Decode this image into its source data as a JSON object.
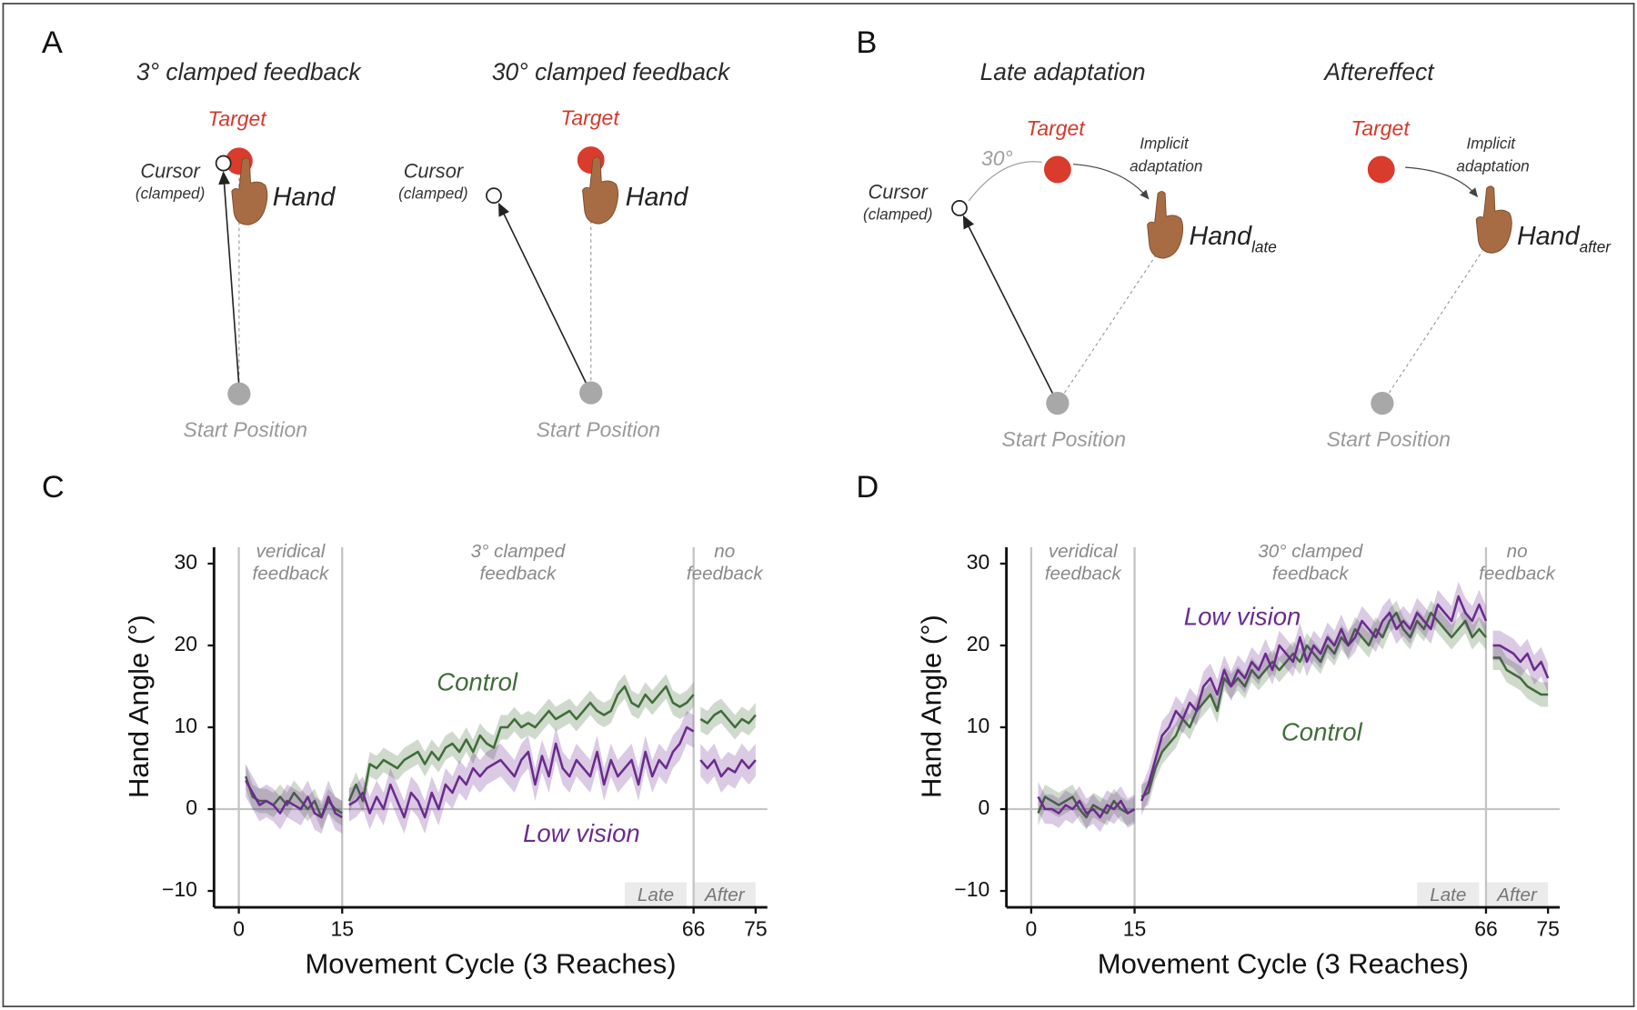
{
  "panel_a": {
    "letter": "A",
    "subpanels": [
      {
        "title": "3° clamped feedback",
        "target": "Target",
        "cursor": "Cursor",
        "cursor_note": "(clamped)",
        "hand": "Hand",
        "start": "Start Position"
      },
      {
        "title": "30° clamped feedback",
        "target": "Target",
        "cursor": "Cursor",
        "cursor_note": "(clamped)",
        "hand": "Hand",
        "start": "Start Position"
      }
    ]
  },
  "panel_b": {
    "letter": "B",
    "angle": "30°",
    "subpanels": [
      {
        "title": "Late adaptation",
        "target": "Target",
        "cursor": "Cursor",
        "cursor_note": "(clamped)",
        "implicit": [
          "Implicit",
          "adaptation"
        ],
        "hand": "Hand",
        "hand_sub": "late",
        "start": "Start Position"
      },
      {
        "title": "Aftereffect",
        "target": "Target",
        "implicit": [
          "Implicit",
          "adaptation"
        ],
        "hand": "Hand",
        "hand_sub": "after",
        "start": "Start Position"
      }
    ]
  },
  "chart_data": [
    {
      "type": "line",
      "panel_label": "C",
      "x_label": "Movement Cycle (3 Reaches)",
      "y_label": "Hand Angle (°)",
      "xlim": [
        -3.6,
        76.7
      ],
      "ylim": [
        -12,
        32
      ],
      "xticks": [
        0,
        15,
        66,
        75
      ],
      "yticks": [
        {
          "value": -10,
          "label": "−10"
        },
        0,
        10,
        20,
        30
      ],
      "zero_line": true,
      "phases": [
        {
          "lines": [
            "veridical",
            "feedback"
          ],
          "range": [
            0,
            15
          ]
        },
        {
          "lines": [
            "3° clamped",
            "feedback"
          ],
          "range": [
            15,
            66
          ]
        },
        {
          "lines": [
            "no",
            "feedback"
          ],
          "range": [
            66,
            75
          ]
        }
      ],
      "windows": [
        {
          "label": "Late",
          "range": [
            56,
            65
          ]
        },
        {
          "label": "After",
          "range": [
            66,
            75
          ]
        }
      ],
      "x": [
        1,
        2,
        3,
        4,
        5,
        6,
        7,
        8,
        9,
        10,
        11,
        12,
        13,
        14,
        15,
        16,
        17,
        18,
        19,
        20,
        21,
        22,
        23,
        24,
        25,
        26,
        27,
        28,
        29,
        30,
        31,
        32,
        33,
        34,
        35,
        36,
        37,
        38,
        39,
        40,
        41,
        42,
        43,
        44,
        45,
        46,
        47,
        48,
        49,
        50,
        51,
        52,
        53,
        54,
        55,
        56,
        57,
        58,
        59,
        60,
        61,
        62,
        63,
        64,
        65,
        66,
        67,
        68,
        69,
        70,
        71,
        72,
        73,
        74,
        75
      ],
      "series": [
        {
          "name": "Control",
          "color": "#3f6d38",
          "error": 1.5,
          "values": [
            4,
            1.5,
            1,
            1,
            0.5,
            1.5,
            0.5,
            2,
            1,
            0,
            1,
            -1,
            1,
            0,
            -0.5,
            1,
            3,
            1,
            5.5,
            5,
            6,
            5.5,
            5,
            6,
            6.5,
            7,
            5.5,
            7,
            6,
            7.5,
            8,
            7,
            8.5,
            7,
            9,
            8,
            7.5,
            10,
            10,
            11,
            10,
            10.5,
            10,
            11,
            12,
            11,
            11.5,
            12,
            11,
            12,
            13,
            12,
            11.5,
            12,
            14,
            15,
            13,
            12.5,
            14,
            13,
            14,
            15,
            13,
            12.5,
            13,
            14,
            11,
            10.5,
            11.5,
            12,
            11,
            10,
            11,
            10.5,
            11.5
          ]
        },
        {
          "name": "Low vision",
          "color": "#6b2b8e",
          "error": 2,
          "values": [
            3.5,
            2,
            0.5,
            1,
            0.5,
            -0.5,
            1,
            0.5,
            0,
            1.5,
            -0.5,
            -1,
            1.5,
            -0.5,
            -1,
            0.5,
            1,
            2,
            -0.5,
            1.5,
            0,
            3,
            1,
            -1,
            2,
            1,
            -1,
            2,
            0,
            3,
            2,
            4,
            3,
            5,
            4,
            5,
            5.5,
            6,
            5,
            4,
            6,
            7,
            3,
            6.5,
            4,
            8,
            5,
            4,
            6,
            5,
            4,
            7,
            3,
            6,
            4,
            5,
            6,
            3,
            7,
            4,
            6,
            5,
            7,
            8,
            10,
            9.5,
            6,
            5,
            6,
            4,
            5,
            4.5,
            6,
            5,
            6
          ]
        }
      ]
    },
    {
      "type": "line",
      "panel_label": "D",
      "x_label": "Movement Cycle (3 Reaches)",
      "y_label": "Hand Angle (°)",
      "xlim": [
        -3.6,
        76.7
      ],
      "ylim": [
        -12,
        32
      ],
      "xticks": [
        0,
        15,
        66,
        75
      ],
      "yticks": [
        {
          "value": -10,
          "label": "−10"
        },
        0,
        10,
        20,
        30
      ],
      "zero_line": true,
      "phases": [
        {
          "lines": [
            "veridical",
            "feedback"
          ],
          "range": [
            0,
            15
          ]
        },
        {
          "lines": [
            "30° clamped",
            "feedback"
          ],
          "range": [
            15,
            66
          ]
        },
        {
          "lines": [
            "no",
            "feedback"
          ],
          "range": [
            66,
            75
          ]
        }
      ],
      "windows": [
        {
          "label": "Late",
          "range": [
            56,
            65
          ]
        },
        {
          "label": "After",
          "range": [
            66,
            75
          ]
        }
      ],
      "x": [
        1,
        2,
        3,
        4,
        5,
        6,
        7,
        8,
        9,
        10,
        11,
        12,
        13,
        14,
        15,
        16,
        17,
        18,
        19,
        20,
        21,
        22,
        23,
        24,
        25,
        26,
        27,
        28,
        29,
        30,
        31,
        32,
        33,
        34,
        35,
        36,
        37,
        38,
        39,
        40,
        41,
        42,
        43,
        44,
        45,
        46,
        47,
        48,
        49,
        50,
        51,
        52,
        53,
        54,
        55,
        56,
        57,
        58,
        59,
        60,
        61,
        62,
        63,
        64,
        65,
        66,
        67,
        68,
        69,
        70,
        71,
        72,
        73,
        74,
        75
      ],
      "series": [
        {
          "name": "Control",
          "color": "#3f6d38",
          "error": 1.5,
          "values": [
            -0.5,
            1.5,
            1,
            0.5,
            1,
            1.5,
            0,
            -1,
            0.5,
            0,
            -0.5,
            1,
            0,
            -0.5,
            0,
            1.5,
            2,
            5,
            7,
            8,
            9,
            11,
            10,
            12,
            13,
            14,
            12,
            16,
            15,
            16,
            15,
            17,
            16,
            17,
            18,
            17,
            18,
            19,
            18,
            20,
            19,
            18,
            20,
            19,
            21,
            20,
            22,
            21,
            20,
            22,
            21,
            23,
            24,
            22,
            21,
            23,
            22,
            24,
            23,
            22,
            21,
            22,
            23,
            21,
            22,
            21,
            18.5,
            18.5,
            17,
            16.5,
            16,
            15,
            14.5,
            14,
            14
          ]
        },
        {
          "name": "Low vision",
          "color": "#6b2b8e",
          "error": 1.8,
          "values": [
            1.5,
            0,
            0,
            -0.5,
            0.5,
            0,
            1,
            -0.5,
            0,
            -1,
            0.5,
            0,
            1,
            -0.5,
            0,
            1,
            3,
            6,
            9,
            10,
            12,
            11,
            13,
            12,
            15,
            16,
            14,
            17,
            15,
            17,
            16,
            18,
            17,
            19,
            17,
            20,
            19,
            18,
            21,
            18,
            20,
            19,
            21,
            20,
            22,
            20,
            21,
            23,
            22,
            21,
            23,
            24,
            22,
            23,
            22,
            24,
            23,
            22,
            25,
            24,
            23,
            26,
            24,
            23,
            25,
            23,
            20,
            20,
            19.5,
            19,
            18,
            19,
            17,
            18,
            16
          ]
        }
      ]
    }
  ]
}
